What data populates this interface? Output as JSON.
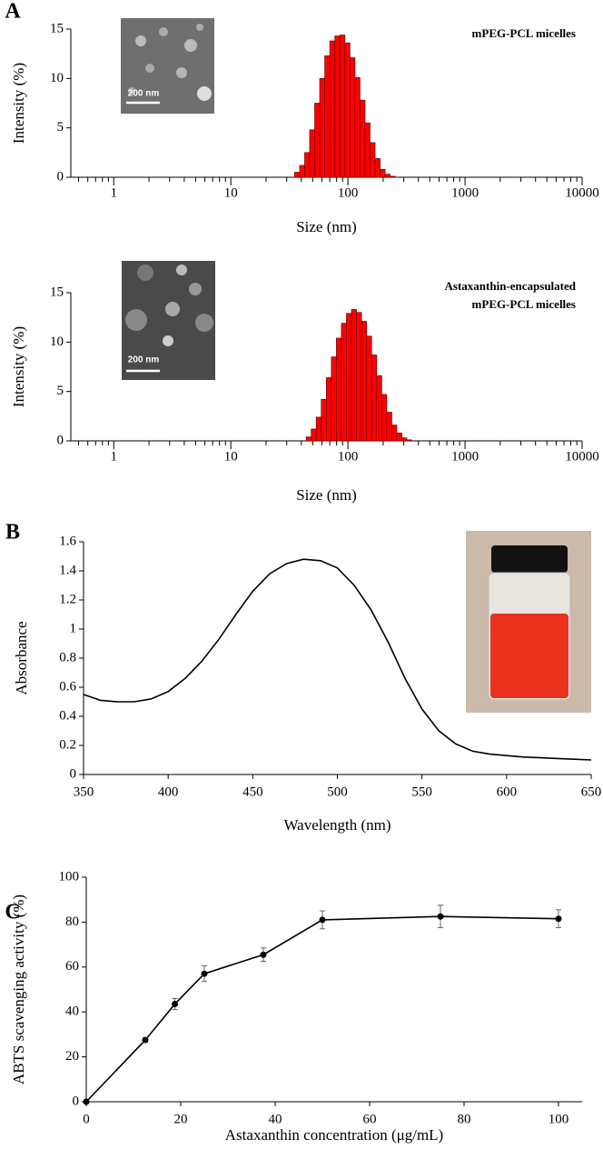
{
  "chart_data": [
    {
      "type": "histogram",
      "panel": "A",
      "annotation": [
        "mPEG-PCL micelles"
      ],
      "inset_scale": "200 nm",
      "xlabel": "Size (nm)",
      "ylabel": "Intensity (%)",
      "xlog": true,
      "minor_ticks": true,
      "color": "#ff0000",
      "bins": [
        35,
        38.7,
        42.7,
        47.1,
        52.0,
        57.4,
        63.4,
        70.0,
        77.3,
        85.3,
        94.2,
        104,
        114.8,
        126.7,
        139.9,
        154.4,
        170.5,
        188.2,
        207.8,
        229.4,
        253.2
      ],
      "values": [
        0.5,
        1.2,
        2.5,
        4.8,
        7.5,
        10,
        12.3,
        13.8,
        14.3,
        14.4,
        13.6,
        12.1,
        10.1,
        7.8,
        5.5,
        3.5,
        1.9,
        0.8,
        0.3,
        0.1
      ],
      "xlim": [
        0.43,
        10000
      ],
      "xticks": [
        1,
        10,
        100,
        1000,
        10000
      ],
      "ylim": [
        0,
        15
      ],
      "yticks": [
        0,
        5,
        10,
        15
      ]
    },
    {
      "type": "histogram",
      "annotation": [
        "Astaxanthin-encapsulated",
        "mPEG-PCL micelles"
      ],
      "inset_scale": "200 nm",
      "xlabel": "Size (nm)",
      "ylabel": "Intensity (%)",
      "xlog": true,
      "minor_ticks": true,
      "color": "#ff0000",
      "bins": [
        44,
        48.6,
        53.6,
        59.2,
        65.4,
        72.2,
        79.7,
        88.0,
        97.1,
        107.2,
        118.4,
        130.7,
        144.3,
        159.3,
        175.9,
        194.2,
        214.4,
        236.7,
        261.3,
        288.5,
        318.5,
        351.6
      ],
      "values": [
        0.4,
        1.2,
        2.4,
        4.2,
        6.4,
        8.5,
        10.4,
        11.9,
        12.9,
        13.3,
        13.0,
        12.1,
        10.6,
        8.7,
        6.6,
        4.7,
        2.9,
        1.6,
        0.8,
        0.3,
        0.1
      ],
      "xlim": [
        0.43,
        10000
      ],
      "xticks": [
        1,
        10,
        100,
        1000,
        10000
      ],
      "ylim": [
        0,
        15
      ],
      "yticks": [
        0,
        5,
        10,
        15
      ]
    },
    {
      "type": "line",
      "panel": "B",
      "xlabel": "Wavelength (nm)",
      "ylabel": "Absorbance",
      "color": "#000000",
      "x": [
        350,
        360,
        370,
        380,
        390,
        400,
        410,
        420,
        430,
        440,
        450,
        460,
        470,
        480,
        490,
        500,
        510,
        520,
        530,
        540,
        550,
        560,
        570,
        580,
        590,
        600,
        610,
        620,
        630,
        640,
        650
      ],
      "values": [
        0.55,
        0.51,
        0.5,
        0.5,
        0.52,
        0.57,
        0.66,
        0.78,
        0.93,
        1.1,
        1.26,
        1.38,
        1.45,
        1.48,
        1.47,
        1.42,
        1.3,
        1.13,
        0.91,
        0.66,
        0.45,
        0.3,
        0.21,
        0.16,
        0.14,
        0.13,
        0.12,
        0.115,
        0.11,
        0.105,
        0.1
      ],
      "xlim": [
        350,
        650
      ],
      "xticks": [
        350,
        400,
        450,
        500,
        550,
        600,
        650
      ],
      "ylim": [
        0,
        1.6
      ],
      "yticks": [
        0,
        0.2,
        0.4,
        0.6,
        0.8,
        1,
        1.2,
        1.4,
        1.6
      ]
    },
    {
      "type": "line",
      "panel": "C",
      "xlabel": "Astaxanthin concentration (μg/mL)",
      "ylabel": "ABTS scavenging activity (%)",
      "color": "#000000",
      "markers": true,
      "x": [
        0,
        12.5,
        18.75,
        25,
        37.5,
        50,
        75,
        100
      ],
      "values": [
        0,
        27.5,
        43.5,
        57,
        65.5,
        81,
        82.5,
        81.5
      ],
      "errors": [
        0,
        1,
        2.5,
        3.5,
        3,
        4,
        5,
        4
      ],
      "xlim": [
        0,
        105
      ],
      "xticks": [
        0,
        20,
        40,
        60,
        80,
        100
      ],
      "ylim": [
        0,
        100
      ],
      "yticks": [
        0,
        20,
        40,
        60,
        80,
        100
      ]
    }
  ]
}
